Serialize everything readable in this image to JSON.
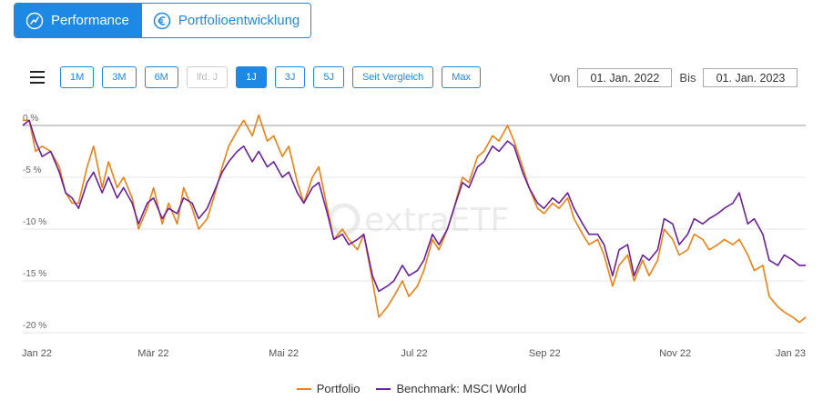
{
  "tabs": [
    {
      "label": "Performance",
      "icon": "performance-icon",
      "active": true
    },
    {
      "label": "Portfolioentwicklung",
      "icon": "euro-icon",
      "active": false
    }
  ],
  "ranges": [
    "1M",
    "3M",
    "6M",
    "lfd. J",
    "1J",
    "3J",
    "5J",
    "Seit Vergleich",
    "Max"
  ],
  "range_active": "1J",
  "range_disabled": [
    "lfd. J"
  ],
  "date_from_label": "Von",
  "date_from": "01. Jan. 2022",
  "date_to_label": "Bis",
  "date_to": "01. Jan. 2023",
  "watermark": "extraETF",
  "colors": {
    "portfolio": "#f07f0f",
    "benchmark": "#6a1fa0",
    "accent": "#1e88e5"
  },
  "chart_data": {
    "type": "line",
    "title": "",
    "xlabel": "",
    "ylabel": "",
    "y_unit": "%",
    "ylim": [
      -20,
      0
    ],
    "y_ticks": [
      0,
      -5,
      -10,
      -15,
      -20
    ],
    "y_tick_labels": [
      "0 %",
      "-5 %",
      "-10 %",
      "-15 %",
      "-20 %"
    ],
    "x_ticks": [
      "Jan 22",
      "Mär 22",
      "Mai 22",
      "Jul 22",
      "Sep 22",
      "Nov 22",
      "Jan 23"
    ],
    "x_range": [
      "2022-01-01",
      "2023-01-01"
    ],
    "grid": "horizontal",
    "legend_position": "bottom",
    "series": [
      {
        "name": "Portfolio",
        "color": "#f07f0f",
        "points": [
          [
            "2022-01-01",
            0.5
          ],
          [
            "2022-01-04",
            0.5
          ],
          [
            "2022-01-07",
            -2.5
          ],
          [
            "2022-01-10",
            -2.0
          ],
          [
            "2022-01-14",
            -2.5
          ],
          [
            "2022-01-18",
            -4.0
          ],
          [
            "2022-01-21",
            -6.5
          ],
          [
            "2022-01-24",
            -7.5
          ],
          [
            "2022-01-27",
            -7.5
          ],
          [
            "2022-01-31",
            -4.0
          ],
          [
            "2022-02-03",
            -2.0
          ],
          [
            "2022-02-07",
            -6.0
          ],
          [
            "2022-02-10",
            -3.5
          ],
          [
            "2022-02-14",
            -6.0
          ],
          [
            "2022-02-17",
            -5.0
          ],
          [
            "2022-02-21",
            -7.0
          ],
          [
            "2022-02-24",
            -10.0
          ],
          [
            "2022-02-28",
            -8.0
          ],
          [
            "2022-03-03",
            -6.0
          ],
          [
            "2022-03-07",
            -9.5
          ],
          [
            "2022-03-10",
            -7.5
          ],
          [
            "2022-03-14",
            -9.5
          ],
          [
            "2022-03-17",
            -6.0
          ],
          [
            "2022-03-21",
            -8.0
          ],
          [
            "2022-03-24",
            -10.0
          ],
          [
            "2022-03-28",
            -9.0
          ],
          [
            "2022-03-31",
            -7.0
          ],
          [
            "2022-04-04",
            -4.0
          ],
          [
            "2022-04-07",
            -2.0
          ],
          [
            "2022-04-11",
            -0.5
          ],
          [
            "2022-04-14",
            0.5
          ],
          [
            "2022-04-18",
            -1.0
          ],
          [
            "2022-04-21",
            1.0
          ],
          [
            "2022-04-25",
            -1.5
          ],
          [
            "2022-04-28",
            -1.0
          ],
          [
            "2022-05-02",
            -3.0
          ],
          [
            "2022-05-05",
            -2.0
          ],
          [
            "2022-05-09",
            -5.5
          ],
          [
            "2022-05-12",
            -7.5
          ],
          [
            "2022-05-16",
            -5.0
          ],
          [
            "2022-05-19",
            -4.0
          ],
          [
            "2022-05-23",
            -8.0
          ],
          [
            "2022-05-26",
            -11.0
          ],
          [
            "2022-05-30",
            -10.0
          ],
          [
            "2022-06-02",
            -11.0
          ],
          [
            "2022-06-06",
            -12.0
          ],
          [
            "2022-06-09",
            -10.5
          ],
          [
            "2022-06-13",
            -15.0
          ],
          [
            "2022-06-16",
            -18.5
          ],
          [
            "2022-06-20",
            -17.5
          ],
          [
            "2022-06-23",
            -16.5
          ],
          [
            "2022-06-27",
            -15.0
          ],
          [
            "2022-06-30",
            -16.5
          ],
          [
            "2022-07-04",
            -15.5
          ],
          [
            "2022-07-07",
            -14.0
          ],
          [
            "2022-07-11",
            -11.0
          ],
          [
            "2022-07-14",
            -12.0
          ],
          [
            "2022-07-18",
            -10.0
          ],
          [
            "2022-07-21",
            -8.0
          ],
          [
            "2022-07-25",
            -5.0
          ],
          [
            "2022-07-28",
            -5.5
          ],
          [
            "2022-08-01",
            -3.0
          ],
          [
            "2022-08-04",
            -2.5
          ],
          [
            "2022-08-08",
            -1.0
          ],
          [
            "2022-08-11",
            -1.5
          ],
          [
            "2022-08-15",
            0.0
          ],
          [
            "2022-08-18",
            -1.5
          ],
          [
            "2022-08-22",
            -4.0
          ],
          [
            "2022-08-25",
            -6.0
          ],
          [
            "2022-08-29",
            -8.0
          ],
          [
            "2022-09-01",
            -8.5
          ],
          [
            "2022-09-05",
            -7.5
          ],
          [
            "2022-09-08",
            -8.0
          ],
          [
            "2022-09-12",
            -7.0
          ],
          [
            "2022-09-15",
            -9.0
          ],
          [
            "2022-09-19",
            -10.5
          ],
          [
            "2022-09-22",
            -11.5
          ],
          [
            "2022-09-26",
            -11.0
          ],
          [
            "2022-09-29",
            -12.5
          ],
          [
            "2022-10-03",
            -15.5
          ],
          [
            "2022-10-06",
            -13.5
          ],
          [
            "2022-10-10",
            -12.5
          ],
          [
            "2022-10-13",
            -15.0
          ],
          [
            "2022-10-17",
            -13.0
          ],
          [
            "2022-10-20",
            -14.5
          ],
          [
            "2022-10-24",
            -13.0
          ],
          [
            "2022-10-27",
            -10.0
          ],
          [
            "2022-10-31",
            -11.0
          ],
          [
            "2022-11-03",
            -12.5
          ],
          [
            "2022-11-07",
            -12.0
          ],
          [
            "2022-11-10",
            -10.5
          ],
          [
            "2022-11-14",
            -11.0
          ],
          [
            "2022-11-17",
            -12.0
          ],
          [
            "2022-11-21",
            -11.5
          ],
          [
            "2022-11-24",
            -11.0
          ],
          [
            "2022-11-28",
            -11.5
          ],
          [
            "2022-12-01",
            -11.0
          ],
          [
            "2022-12-05",
            -12.5
          ],
          [
            "2022-12-08",
            -14.0
          ],
          [
            "2022-12-12",
            -13.5
          ],
          [
            "2022-12-15",
            -16.5
          ],
          [
            "2022-12-19",
            -17.5
          ],
          [
            "2022-12-22",
            -18.0
          ],
          [
            "2022-12-26",
            -18.5
          ],
          [
            "2022-12-29",
            -19.0
          ],
          [
            "2023-01-01",
            -18.5
          ]
        ]
      },
      {
        "name": "Benchmark: MSCI World",
        "color": "#6a1fa0",
        "points": [
          [
            "2022-01-01",
            0.0
          ],
          [
            "2022-01-04",
            0.5
          ],
          [
            "2022-01-07",
            -1.5
          ],
          [
            "2022-01-10",
            -3.0
          ],
          [
            "2022-01-14",
            -2.5
          ],
          [
            "2022-01-18",
            -4.5
          ],
          [
            "2022-01-21",
            -6.5
          ],
          [
            "2022-01-24",
            -7.0
          ],
          [
            "2022-01-27",
            -8.0
          ],
          [
            "2022-01-31",
            -5.5
          ],
          [
            "2022-02-03",
            -4.5
          ],
          [
            "2022-02-07",
            -6.5
          ],
          [
            "2022-02-10",
            -5.0
          ],
          [
            "2022-02-14",
            -7.0
          ],
          [
            "2022-02-17",
            -6.0
          ],
          [
            "2022-02-21",
            -7.5
          ],
          [
            "2022-02-24",
            -9.5
          ],
          [
            "2022-02-28",
            -7.5
          ],
          [
            "2022-03-03",
            -7.0
          ],
          [
            "2022-03-07",
            -9.0
          ],
          [
            "2022-03-10",
            -8.0
          ],
          [
            "2022-03-14",
            -8.5
          ],
          [
            "2022-03-17",
            -7.0
          ],
          [
            "2022-03-21",
            -7.5
          ],
          [
            "2022-03-24",
            -9.0
          ],
          [
            "2022-03-28",
            -8.0
          ],
          [
            "2022-03-31",
            -6.5
          ],
          [
            "2022-04-04",
            -4.5
          ],
          [
            "2022-04-07",
            -3.5
          ],
          [
            "2022-04-11",
            -2.5
          ],
          [
            "2022-04-14",
            -2.0
          ],
          [
            "2022-04-18",
            -3.5
          ],
          [
            "2022-04-21",
            -2.5
          ],
          [
            "2022-04-25",
            -4.0
          ],
          [
            "2022-04-28",
            -3.5
          ],
          [
            "2022-05-02",
            -5.0
          ],
          [
            "2022-05-05",
            -4.5
          ],
          [
            "2022-05-09",
            -6.5
          ],
          [
            "2022-05-12",
            -7.5
          ],
          [
            "2022-05-16",
            -6.0
          ],
          [
            "2022-05-19",
            -5.5
          ],
          [
            "2022-05-23",
            -8.5
          ],
          [
            "2022-05-26",
            -11.0
          ],
          [
            "2022-05-30",
            -10.5
          ],
          [
            "2022-06-02",
            -11.5
          ],
          [
            "2022-06-06",
            -11.0
          ],
          [
            "2022-06-09",
            -10.5
          ],
          [
            "2022-06-13",
            -14.5
          ],
          [
            "2022-06-16",
            -16.0
          ],
          [
            "2022-06-20",
            -15.5
          ],
          [
            "2022-06-23",
            -15.0
          ],
          [
            "2022-06-27",
            -13.5
          ],
          [
            "2022-06-30",
            -14.5
          ],
          [
            "2022-07-04",
            -14.0
          ],
          [
            "2022-07-07",
            -13.0
          ],
          [
            "2022-07-11",
            -10.5
          ],
          [
            "2022-07-14",
            -11.5
          ],
          [
            "2022-07-18",
            -10.0
          ],
          [
            "2022-07-21",
            -8.0
          ],
          [
            "2022-07-25",
            -5.5
          ],
          [
            "2022-07-28",
            -6.0
          ],
          [
            "2022-08-01",
            -4.0
          ],
          [
            "2022-08-04",
            -3.5
          ],
          [
            "2022-08-08",
            -2.0
          ],
          [
            "2022-08-11",
            -2.5
          ],
          [
            "2022-08-15",
            -1.5
          ],
          [
            "2022-08-18",
            -2.0
          ],
          [
            "2022-08-22",
            -4.5
          ],
          [
            "2022-08-25",
            -6.0
          ],
          [
            "2022-08-29",
            -7.5
          ],
          [
            "2022-09-01",
            -8.0
          ],
          [
            "2022-09-05",
            -7.0
          ],
          [
            "2022-09-08",
            -7.5
          ],
          [
            "2022-09-12",
            -6.5
          ],
          [
            "2022-09-15",
            -8.0
          ],
          [
            "2022-09-19",
            -9.5
          ],
          [
            "2022-09-22",
            -10.5
          ],
          [
            "2022-09-26",
            -10.5
          ],
          [
            "2022-09-29",
            -11.5
          ],
          [
            "2022-10-03",
            -14.5
          ],
          [
            "2022-10-06",
            -12.0
          ],
          [
            "2022-10-10",
            -11.5
          ],
          [
            "2022-10-13",
            -14.5
          ],
          [
            "2022-10-17",
            -12.5
          ],
          [
            "2022-10-20",
            -13.0
          ],
          [
            "2022-10-24",
            -12.0
          ],
          [
            "2022-10-27",
            -9.0
          ],
          [
            "2022-10-31",
            -9.5
          ],
          [
            "2022-11-03",
            -11.5
          ],
          [
            "2022-11-07",
            -10.5
          ],
          [
            "2022-11-10",
            -9.0
          ],
          [
            "2022-11-14",
            -9.5
          ],
          [
            "2022-11-17",
            -9.0
          ],
          [
            "2022-11-21",
            -8.5
          ],
          [
            "2022-11-24",
            -8.0
          ],
          [
            "2022-11-28",
            -7.5
          ],
          [
            "2022-12-01",
            -6.5
          ],
          [
            "2022-12-05",
            -9.5
          ],
          [
            "2022-12-08",
            -9.0
          ],
          [
            "2022-12-12",
            -10.5
          ],
          [
            "2022-12-15",
            -13.0
          ],
          [
            "2022-12-19",
            -13.5
          ],
          [
            "2022-12-22",
            -12.5
          ],
          [
            "2022-12-26",
            -13.0
          ],
          [
            "2022-12-29",
            -13.5
          ],
          [
            "2023-01-01",
            -13.5
          ]
        ]
      }
    ]
  }
}
